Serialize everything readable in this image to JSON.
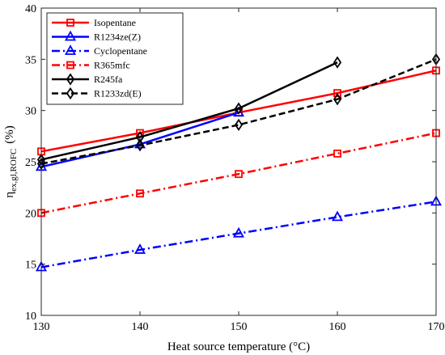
{
  "chart_data": {
    "type": "line",
    "title": "",
    "xlabel": "Heat source temperature (°C)",
    "ylabel": {
      "main": "η",
      "subscript": "ex,gl,ROFC",
      "unit": "(%)"
    },
    "x": [
      130,
      140,
      150,
      160,
      170
    ],
    "xlim": [
      130,
      170
    ],
    "ylim": [
      10,
      40
    ],
    "xticks": [
      "130",
      "140",
      "150",
      "160",
      "170"
    ],
    "yticks": [
      "10",
      "15",
      "20",
      "25",
      "30",
      "35",
      "40"
    ],
    "grid": false,
    "legend_position": "top-left",
    "series": [
      {
        "name": "Isopentane",
        "x": [
          130,
          140,
          150,
          160,
          170
        ],
        "values": [
          26.0,
          27.8,
          29.8,
          31.7,
          33.9
        ],
        "color": "#ff0000",
        "line": "solid",
        "marker": "square"
      },
      {
        "name": "R1234ze(Z)",
        "x": [
          130,
          140,
          150
        ],
        "values": [
          24.5,
          26.7,
          29.8
        ],
        "color": "#0000ff",
        "line": "solid",
        "marker": "triangle"
      },
      {
        "name": "Cyclopentane",
        "x": [
          130,
          140,
          150,
          160,
          170
        ],
        "values": [
          14.7,
          16.4,
          18.0,
          19.6,
          21.1
        ],
        "color": "#0000ff",
        "line": "dashdot",
        "marker": "triangle"
      },
      {
        "name": "R365mfc",
        "x": [
          130,
          140,
          150,
          160,
          170
        ],
        "values": [
          20.0,
          21.9,
          23.8,
          25.8,
          27.8
        ],
        "color": "#ff0000",
        "line": "dashdot",
        "marker": "square"
      },
      {
        "name": "R245fa",
        "x": [
          130,
          140,
          150,
          160
        ],
        "values": [
          25.2,
          27.4,
          30.2,
          34.7
        ],
        "color": "#000000",
        "line": "solid",
        "marker": "diamond"
      },
      {
        "name": "R1233zd(E)",
        "x": [
          130,
          140,
          150,
          160,
          170
        ],
        "values": [
          24.8,
          26.6,
          28.6,
          31.1,
          35.0
        ],
        "color": "#000000",
        "line": "dashed",
        "marker": "diamond"
      }
    ]
  }
}
